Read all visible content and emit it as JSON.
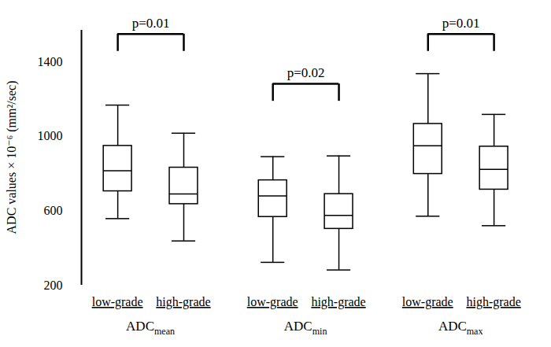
{
  "chart_data": {
    "type": "box",
    "y_label": "ADC values × 10⁻⁶ (mm²/sec)",
    "ylim": [
      200,
      1570
    ],
    "yticks": [
      200,
      600,
      1000,
      1400
    ],
    "groups": [
      {
        "name": "ADC",
        "subscript": "mean",
        "boxes": [
          {
            "category": "low-grade",
            "whisker_low": 558,
            "q1": 705,
            "median": 815,
            "q3": 949,
            "whisker_high": 1168
          },
          {
            "category": "high-grade",
            "whisker_low": 438,
            "q1": 636,
            "median": 690,
            "q3": 832,
            "whisker_high": 1017
          }
        ],
        "comparison": {
          "label": "p=0.01",
          "bracket_y": 1550
        }
      },
      {
        "name": "ADC",
        "subscript": "min",
        "boxes": [
          {
            "category": "low-grade",
            "whisker_low": 323,
            "q1": 567,
            "median": 680,
            "q3": 764,
            "whisker_high": 891
          },
          {
            "category": "high-grade",
            "whisker_low": 282,
            "q1": 503,
            "median": 575,
            "q3": 690,
            "whisker_high": 895
          }
        ],
        "comparison": {
          "label": "p=0.02",
          "bracket_y": 1282
        }
      },
      {
        "name": "ADC",
        "subscript": "max",
        "boxes": [
          {
            "category": "low-grade",
            "whisker_low": 571,
            "q1": 798,
            "median": 949,
            "q3": 1067,
            "whisker_high": 1337
          },
          {
            "category": "high-grade",
            "whisker_low": 520,
            "q1": 714,
            "median": 823,
            "q3": 945,
            "whisker_high": 1118
          }
        ],
        "comparison": {
          "label": "p=0.01",
          "bracket_y": 1550
        }
      }
    ]
  }
}
